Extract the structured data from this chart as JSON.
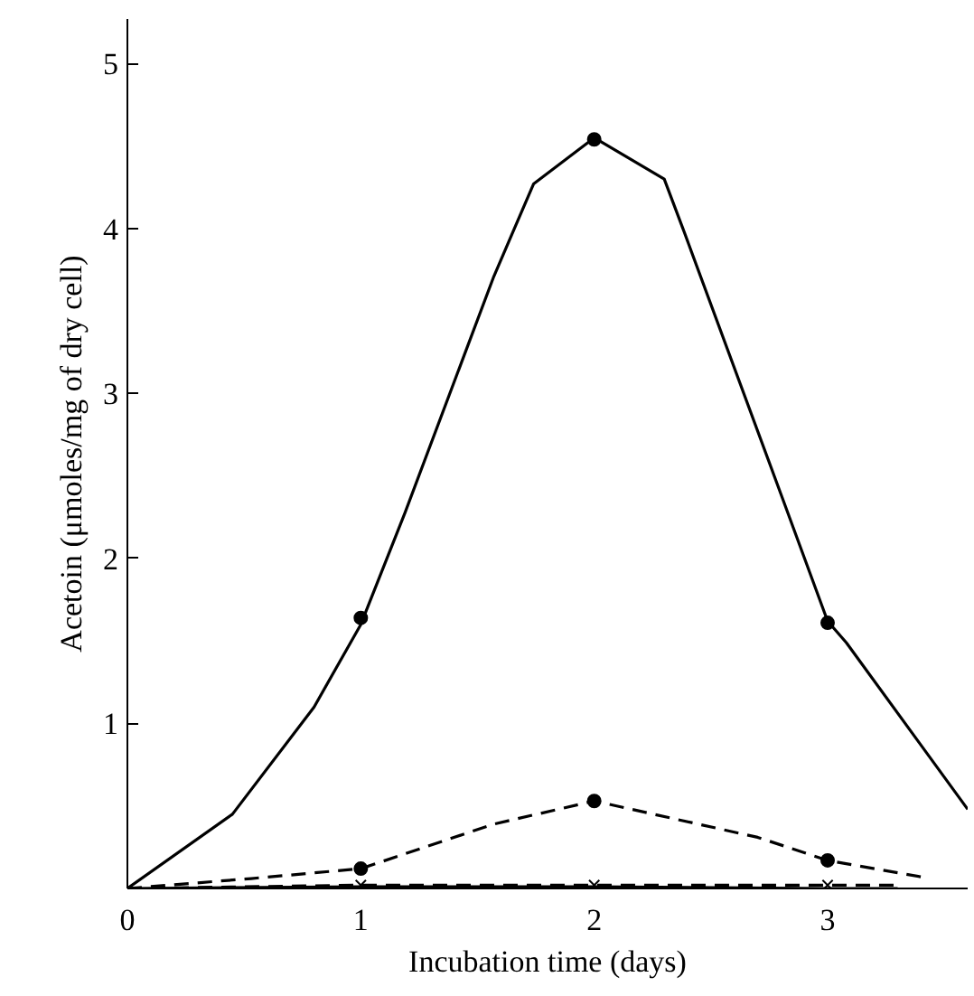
{
  "chart_data": {
    "type": "line",
    "xlabel": "Incubation time (days)",
    "ylabel": "Acetoin (μmoles/mg of dry cell)",
    "xlim": [
      0,
      3.6
    ],
    "ylim": [
      0,
      5.27
    ],
    "xticks": [
      0,
      1,
      2,
      3
    ],
    "yticks": [
      1,
      2,
      3,
      4,
      5
    ],
    "series": [
      {
        "line_style": "solid",
        "color": "#000000",
        "x": [
          0,
          0.45,
          0.8,
          1,
          1.19,
          1.57,
          1.74,
          2,
          2.3,
          2.38,
          2.8,
          3,
          3.08,
          3.6
        ],
        "values": [
          0,
          0.45,
          1.1,
          1.6,
          2.28,
          3.71,
          4.27,
          4.55,
          4.3,
          4.0,
          2.39,
          1.62,
          1.49,
          0.48
        ]
      },
      {
        "type": "scatter",
        "marker": "circle",
        "color": "#000000",
        "x": [
          1,
          2,
          3
        ],
        "values": [
          1.64,
          4.54,
          1.61
        ]
      },
      {
        "line_style": "dashed",
        "color": "#000000",
        "x": [
          0,
          0.53,
          1,
          1.57,
          2,
          2.7,
          3,
          3.4
        ],
        "values": [
          0,
          0.06,
          0.12,
          0.39,
          0.53,
          0.31,
          0.17,
          0.07
        ]
      },
      {
        "type": "scatter",
        "marker": "circle",
        "color": "#000000",
        "x": [
          1,
          2,
          3
        ],
        "values": [
          0.12,
          0.53,
          0.17
        ]
      },
      {
        "line_style": "solid",
        "color": "#000000",
        "x": [
          0,
          1,
          2,
          3,
          3.3
        ],
        "values": [
          0,
          0.01,
          0.01,
          0.0,
          0.0
        ]
      },
      {
        "line_style": "dashed",
        "marker": "cross",
        "color": "#000000",
        "x": [
          0,
          1,
          2,
          3,
          3.3
        ],
        "values": [
          0,
          0.02,
          0.02,
          0.02,
          0.02
        ]
      }
    ]
  }
}
